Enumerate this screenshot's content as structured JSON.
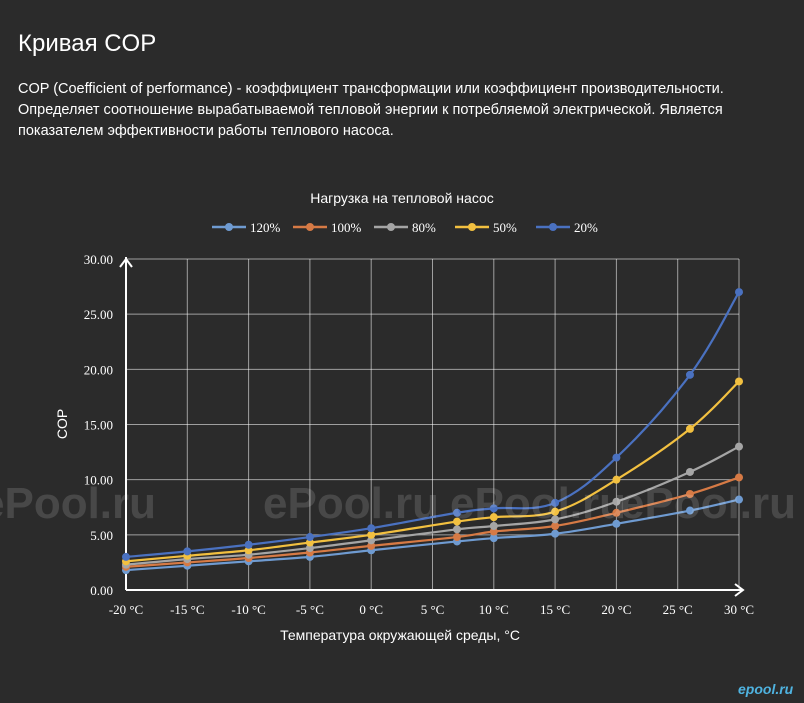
{
  "header": {
    "title": "Кривая COP",
    "description": "COP (Coefficient of performance) - коэффициент трансформации или коэффициент производительности. Определяет соотношение вырабатываемой тепловой энергии к потребляемой электрической. Является показателем эффективности работы теплового насоса."
  },
  "watermark": {
    "text": "ePool.ru",
    "corner": "epool.ru"
  },
  "colors": {
    "background": "#2b2b2b",
    "grid": "#ffffff",
    "text": "#ffffff"
  },
  "chart_data": {
    "type": "line",
    "title": "Нагрузка на тепловой насос",
    "xlabel": "Температура окружающей среды, °С",
    "ylabel": "COP",
    "x_tick_labels": [
      "-20 °C",
      "-15 °C",
      "-10 °C",
      "-5 °C",
      "0 °C",
      "5 °C",
      "10 °C",
      "15 °C",
      "20 °C",
      "25 °C",
      "30 °C"
    ],
    "y_tick_labels": [
      "0.00",
      "5.00",
      "10.00",
      "15.00",
      "20.00",
      "25.00",
      "30.00"
    ],
    "xlim": [
      -20,
      30
    ],
    "ylim": [
      0,
      30
    ],
    "grid": true,
    "legend_position": "top",
    "series": [
      {
        "name": "120%",
        "color": "#6f9bd1",
        "points": [
          [
            -20,
            1.8
          ],
          [
            -15,
            2.2
          ],
          [
            -10,
            2.6
          ],
          [
            -5,
            3.0
          ],
          [
            0,
            3.6
          ],
          [
            7,
            4.4
          ],
          [
            10,
            4.7
          ],
          [
            15,
            5.1
          ],
          [
            20,
            6.0
          ],
          [
            26,
            7.2
          ],
          [
            30,
            8.2
          ]
        ]
      },
      {
        "name": "100%",
        "color": "#d67a45",
        "points": [
          [
            -20,
            2.1
          ],
          [
            -15,
            2.5
          ],
          [
            -10,
            2.9
          ],
          [
            -5,
            3.4
          ],
          [
            0,
            4.0
          ],
          [
            7,
            4.8
          ],
          [
            10,
            5.3
          ],
          [
            15,
            5.8
          ],
          [
            20,
            7.0
          ],
          [
            26,
            8.7
          ],
          [
            30,
            10.2
          ]
        ]
      },
      {
        "name": "80%",
        "color": "#a5a5a5",
        "points": [
          [
            -20,
            2.3
          ],
          [
            -15,
            2.8
          ],
          [
            -10,
            3.2
          ],
          [
            -5,
            3.8
          ],
          [
            0,
            4.5
          ],
          [
            7,
            5.5
          ],
          [
            10,
            5.8
          ],
          [
            15,
            6.4
          ],
          [
            20,
            8.0
          ],
          [
            26,
            10.7
          ],
          [
            30,
            13.0
          ]
        ]
      },
      {
        "name": "50%",
        "color": "#f2c040",
        "points": [
          [
            -20,
            2.6
          ],
          [
            -15,
            3.1
          ],
          [
            -10,
            3.6
          ],
          [
            -5,
            4.3
          ],
          [
            0,
            5.0
          ],
          [
            7,
            6.2
          ],
          [
            10,
            6.6
          ],
          [
            15,
            7.1
          ],
          [
            20,
            10.0
          ],
          [
            26,
            14.6
          ],
          [
            30,
            18.9
          ]
        ]
      },
      {
        "name": "20%",
        "color": "#4a71c0",
        "points": [
          [
            -20,
            3.0
          ],
          [
            -15,
            3.5
          ],
          [
            -10,
            4.1
          ],
          [
            -5,
            4.8
          ],
          [
            0,
            5.6
          ],
          [
            7,
            7.0
          ],
          [
            10,
            7.4
          ],
          [
            15,
            7.9
          ],
          [
            20,
            12.0
          ],
          [
            26,
            19.5
          ],
          [
            30,
            27.0
          ]
        ]
      }
    ]
  }
}
